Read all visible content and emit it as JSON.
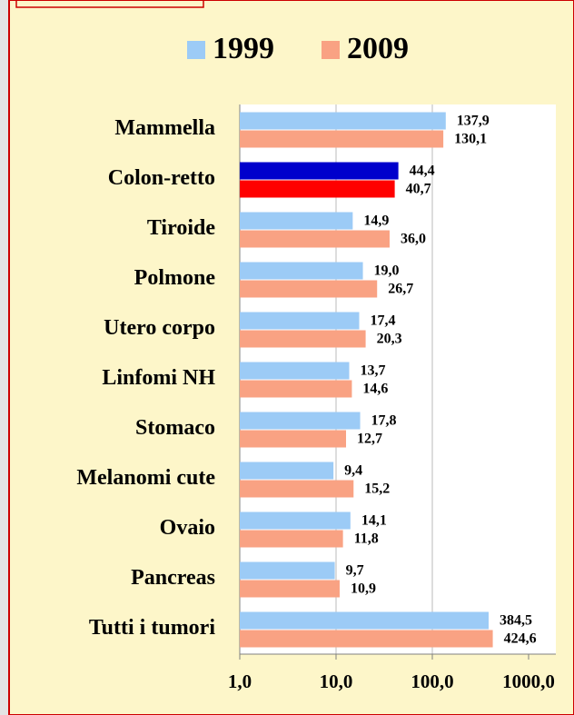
{
  "chart_data": {
    "type": "bar",
    "orientation": "horizontal",
    "log_scale": true,
    "grid": true,
    "legend": "top",
    "categories": [
      "Mammella",
      "Colon-retto",
      "Tiroide",
      "Polmone",
      "Utero corpo",
      "Linfomi NH",
      "Stomaco",
      "Melanomi cute",
      "Ovaio",
      "Pancreas",
      "Tutti i tumori"
    ],
    "series": [
      {
        "name": "1999",
        "color": "#9ccbf6",
        "colors": [
          "#9ccbf6",
          "#0000cc",
          "#9ccbf6",
          "#9ccbf6",
          "#9ccbf6",
          "#9ccbf6",
          "#9ccbf6",
          "#9ccbf6",
          "#9ccbf6",
          "#9ccbf6",
          "#9ccbf6"
        ],
        "values": [
          137.9,
          44.4,
          14.9,
          19.0,
          17.4,
          13.7,
          17.8,
          9.4,
          14.1,
          9.7,
          384.5
        ],
        "value_labels": [
          "137,9",
          "44,4",
          "14,9",
          "19,0",
          "17,4",
          "13,7",
          "17,8",
          "9,4",
          "14,1",
          "9,7",
          "384,5"
        ]
      },
      {
        "name": "2009",
        "color": "#f9a283",
        "colors": [
          "#f9a283",
          "#ff0000",
          "#f9a283",
          "#f9a283",
          "#f9a283",
          "#f9a283",
          "#f9a283",
          "#f9a283",
          "#f9a283",
          "#f9a283",
          "#f9a283"
        ],
        "values": [
          130.1,
          40.7,
          36.0,
          26.7,
          20.3,
          14.6,
          12.7,
          15.2,
          11.8,
          10.9,
          424.6
        ],
        "value_labels": [
          "130,1",
          "40,7",
          "36,0",
          "26,7",
          "20,3",
          "14,6",
          "12,7",
          "15,2",
          "11,8",
          "10,9",
          "424,6"
        ]
      }
    ],
    "xlim": [
      1,
      1000
    ],
    "xticks": [
      {
        "value": 1,
        "label": "1,0"
      },
      {
        "value": 10,
        "label": "10,0"
      },
      {
        "value": 100,
        "label": "100,0"
      },
      {
        "value": 1000,
        "label": "1000,0"
      }
    ]
  }
}
